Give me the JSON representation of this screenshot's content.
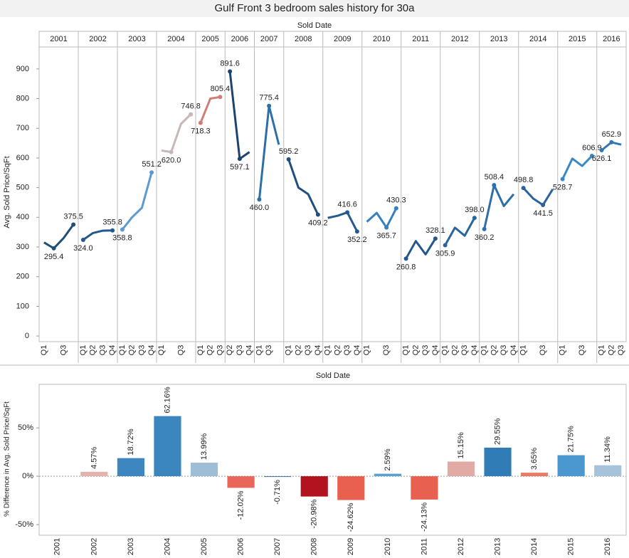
{
  "chart_data": [
    {
      "type": "paneled-line",
      "title": "Gulf Front 3 bedroom sales history for 30a",
      "x_label": "Sold Date",
      "y_label": "Avg. Sold Price/SqFt",
      "ylim": [
        -19,
        974
      ],
      "yticks": [
        0,
        100,
        200,
        300,
        400,
        500,
        600,
        700,
        800,
        900
      ],
      "panels": [
        {
          "year": "2001",
          "color": "#1f4e79",
          "categories": [
            "Q1",
            null,
            "Q3",
            null
          ],
          "values": [
            315,
            295.4,
            330,
            375.5
          ],
          "value_labels": [
            null,
            "295.4",
            null,
            "375.5"
          ]
        },
        {
          "year": "2002",
          "color": "#24588c",
          "categories": [
            "Q1",
            "Q2",
            "Q3",
            "Q4"
          ],
          "values": [
            324.0,
            347,
            355,
            355.8
          ],
          "value_labels": [
            "324.0",
            null,
            null,
            "355.8"
          ]
        },
        {
          "year": "2003",
          "color": "#5b9bd0",
          "categories": [
            "Q1",
            "Q2",
            "Q3",
            "Q4"
          ],
          "values": [
            358.8,
            400,
            432,
            551.2
          ],
          "value_labels": [
            "358.8",
            null,
            null,
            "551.2"
          ]
        },
        {
          "year": "2004",
          "color": "#c7b7b7",
          "categories": [
            "Q1",
            null,
            "Q3",
            null
          ],
          "values": [
            625,
            620.0,
            715,
            746.8
          ],
          "value_labels": [
            null,
            "620.0",
            null,
            "746.8"
          ]
        },
        {
          "year": "2005",
          "color": "#d27c78",
          "categories": [
            "Q1",
            "Q2",
            "Q3"
          ],
          "values": [
            718.3,
            800,
            805.4
          ],
          "value_labels": [
            "718.3",
            null,
            "805.4"
          ]
        },
        {
          "year": "2006",
          "color": "#1d4470",
          "categories": [
            "Q2",
            "Q3",
            "Q4"
          ],
          "values": [
            891.6,
            597.1,
            620
          ],
          "value_labels": [
            "891.6",
            "597.1",
            null
          ]
        },
        {
          "year": "2007",
          "color": "#2e6fa8",
          "categories": [
            "Q1",
            "Q3",
            null
          ],
          "values": [
            460.0,
            775.4,
            645
          ],
          "value_labels": [
            "460.0",
            "775.4",
            null
          ]
        },
        {
          "year": "2008",
          "color": "#1f4f80",
          "categories": [
            "Q1",
            "Q2",
            "Q3",
            "Q4"
          ],
          "values": [
            595.2,
            500,
            478,
            409.2
          ],
          "value_labels": [
            "595.2",
            null,
            null,
            "409.2"
          ]
        },
        {
          "year": "2009",
          "color": "#245a90",
          "categories": [
            "Q1",
            "Q2",
            "Q3",
            "Q4"
          ],
          "values": [
            398,
            405,
            416.6,
            352.2
          ],
          "value_labels": [
            null,
            null,
            "416.6",
            "352.2"
          ]
        },
        {
          "year": "2010",
          "color": "#3580bf",
          "categories": [
            "Q1",
            null,
            "Q3",
            null
          ],
          "values": [
            385,
            415,
            365.7,
            430.3
          ],
          "value_labels": [
            null,
            null,
            "365.7",
            "430.3"
          ]
        },
        {
          "year": "2011",
          "color": "#24578b",
          "categories": [
            "Q1",
            "Q2",
            "Q3",
            "Q4"
          ],
          "values": [
            260.8,
            320,
            275,
            328.1
          ],
          "value_labels": [
            "260.8",
            null,
            null,
            "328.1"
          ]
        },
        {
          "year": "2012",
          "color": "#2a649c",
          "categories": [
            "Q1",
            "Q2",
            "Q3",
            "Q4"
          ],
          "values": [
            305.9,
            365,
            338,
            398.0
          ],
          "value_labels": [
            "305.9",
            null,
            null,
            "398.0"
          ]
        },
        {
          "year": "2013",
          "color": "#2d6eaa",
          "categories": [
            "Q1",
            "Q2",
            "Q3",
            "Q4"
          ],
          "values": [
            360.2,
            508.4,
            438,
            478
          ],
          "value_labels": [
            "360.2",
            "508.4",
            null,
            null
          ]
        },
        {
          "year": "2014",
          "color": "#2a62a0",
          "categories": [
            "Q1",
            null,
            "Q3",
            null
          ],
          "values": [
            498.8,
            463,
            441.5,
            495
          ],
          "value_labels": [
            "498.8",
            null,
            "441.5",
            null
          ]
        },
        {
          "year": "2015",
          "color": "#3a88c6",
          "categories": [
            "Q1",
            null,
            "Q3",
            null
          ],
          "values": [
            528.7,
            598,
            573,
            606.9
          ],
          "value_labels": [
            "528.7",
            null,
            null,
            "606.9"
          ]
        },
        {
          "year": "2016",
          "color": "#3277b5",
          "categories": [
            "Q1",
            "Q2",
            "Q3"
          ],
          "values": [
            626.1,
            652.9,
            645
          ],
          "value_labels": [
            "626.1",
            "652.9",
            null
          ]
        }
      ]
    },
    {
      "type": "bar",
      "x_label": "Sold Date",
      "y_label": "% Difference in Avg. Sold Price/SqFt",
      "ylim": [
        -61,
        95
      ],
      "yticks": [
        {
          "value": 50,
          "label": "50%"
        },
        {
          "value": 0,
          "label": "0%"
        },
        {
          "value": -50,
          "label": "-50%"
        }
      ],
      "categories": [
        "2001",
        "2002",
        "2003",
        "2004",
        "2005",
        "2006",
        "2007",
        "2008",
        "2009",
        "2010",
        "2011",
        "2012",
        "2013",
        "2014",
        "2015",
        "2016"
      ],
      "values": [
        null,
        4.57,
        18.72,
        62.16,
        13.99,
        -12.02,
        -0.71,
        -20.98,
        -24.62,
        2.59,
        -24.13,
        15.15,
        29.55,
        3.65,
        21.75,
        11.34
      ],
      "value_labels": [
        null,
        "4.57%",
        "18.72%",
        "62.16%",
        "13.99%",
        "-12.02%",
        "-0.71%",
        "-20.98%",
        "-24.62%",
        "2.59%",
        "-24.13%",
        "15.15%",
        "29.55%",
        "3.65%",
        "21.75%",
        "11.34%"
      ],
      "colors": [
        null,
        "#e5b2ad",
        "#3d86bf",
        "#3b87bd",
        "#9ebdd6",
        "#e8665a",
        "#3b6fa0",
        "#b3121f",
        "#e9604f",
        "#5aa0d0",
        "#e8604f",
        "#e2aaa5",
        "#2f7cb7",
        "#ea7a66",
        "#4b97cf",
        "#a6c3db"
      ]
    }
  ]
}
